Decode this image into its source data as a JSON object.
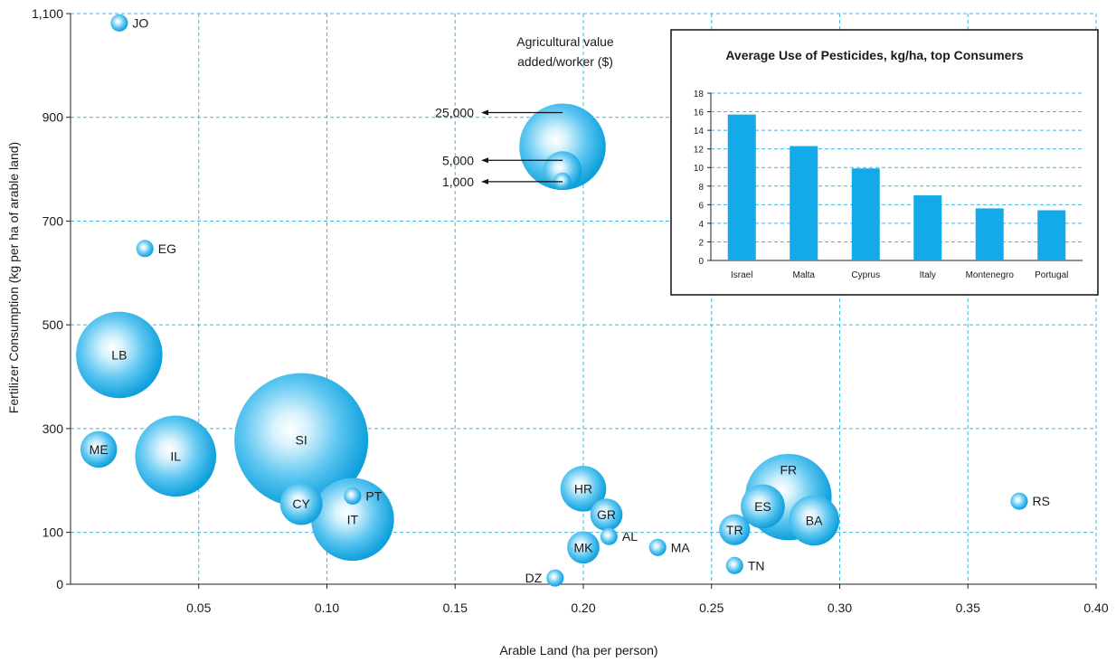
{
  "chart_data": [
    {
      "type": "scatter",
      "subtype": "bubble",
      "xlabel": "Arable Land (ha per person)",
      "ylabel": "Fertilizer Consumption (kg per ha of arable land)",
      "xlim": [
        0,
        0.4
      ],
      "ylim": [
        0,
        1100
      ],
      "x_ticks": [
        {
          "value": 0.05,
          "label": "0.05"
        },
        {
          "value": 0.1,
          "label": "0.10"
        },
        {
          "value": 0.15,
          "label": "0.15"
        },
        {
          "value": 0.2,
          "label": "0.20"
        },
        {
          "value": 0.25,
          "label": "0.25"
        },
        {
          "value": 0.3,
          "label": "0.30"
        },
        {
          "value": 0.35,
          "label": "0.35"
        },
        {
          "value": 0.4,
          "label": "0.40"
        }
      ],
      "y_ticks": [
        {
          "value": 0,
          "label": "0"
        },
        {
          "value": 100,
          "label": "100"
        },
        {
          "value": 300,
          "label": "300"
        },
        {
          "value": 500,
          "label": "500"
        },
        {
          "value": 700,
          "label": "700"
        },
        {
          "value": 900,
          "label": "900"
        },
        {
          "value": 1100,
          "label": "1,100"
        }
      ],
      "grid": true,
      "bubble_color": "#1aa6e0",
      "size_legend": {
        "title_lines": [
          "Agricultural value",
          "added/worker ($)"
        ],
        "entries": [
          {
            "label": "25,000",
            "value": 25000
          },
          {
            "label": "5,000",
            "value": 5000
          },
          {
            "label": "1,000",
            "value": 1000
          }
        ]
      },
      "points": [
        {
          "label": "JO",
          "x": 0.019,
          "y": 1082,
          "size": 1000,
          "label_pos": "right"
        },
        {
          "label": "EG",
          "x": 0.029,
          "y": 647,
          "size": 1000,
          "label_pos": "right"
        },
        {
          "label": "LB",
          "x": 0.019,
          "y": 442,
          "size": 25000,
          "label_pos": "center"
        },
        {
          "label": "ME",
          "x": 0.011,
          "y": 260,
          "size": 4500,
          "label_pos": "center"
        },
        {
          "label": "IL",
          "x": 0.041,
          "y": 247,
          "size": 22000,
          "label_pos": "center"
        },
        {
          "label": "SI",
          "x": 0.09,
          "y": 278,
          "size": 60000,
          "label_pos": "center"
        },
        {
          "label": "CY",
          "x": 0.09,
          "y": 155,
          "size": 6000,
          "label_pos": "center"
        },
        {
          "label": "IT",
          "x": 0.11,
          "y": 125,
          "size": 23000,
          "label_pos": "center"
        },
        {
          "label": "PT",
          "x": 0.11,
          "y": 170,
          "size": 1000,
          "label_pos": "right"
        },
        {
          "label": "HR",
          "x": 0.2,
          "y": 184,
          "size": 7000,
          "label_pos": "center"
        },
        {
          "label": "GR",
          "x": 0.209,
          "y": 134,
          "size": 3500,
          "label_pos": "center"
        },
        {
          "label": "AL",
          "x": 0.21,
          "y": 92,
          "size": 1000,
          "label_pos": "right"
        },
        {
          "label": "MK",
          "x": 0.2,
          "y": 71,
          "size": 3500,
          "label_pos": "center"
        },
        {
          "label": "DZ",
          "x": 0.189,
          "y": 12,
          "size": 1000,
          "label_pos": "left"
        },
        {
          "label": "MA",
          "x": 0.229,
          "y": 71,
          "size": 1000,
          "label_pos": "right"
        },
        {
          "label": "TR",
          "x": 0.259,
          "y": 105,
          "size": 3200,
          "label_pos": "center"
        },
        {
          "label": "TN",
          "x": 0.259,
          "y": 36,
          "size": 1000,
          "label_pos": "right"
        },
        {
          "label": "FR",
          "x": 0.28,
          "y": 168,
          "size": 25000,
          "label_pos": "center",
          "label_dy": -30
        },
        {
          "label": "ES",
          "x": 0.27,
          "y": 150,
          "size": 6500,
          "label_pos": "center"
        },
        {
          "label": "BA",
          "x": 0.29,
          "y": 123,
          "size": 8500,
          "label_pos": "center"
        },
        {
          "label": "RS",
          "x": 0.37,
          "y": 160,
          "size": 1000,
          "label_pos": "right"
        }
      ]
    },
    {
      "type": "bar",
      "title": "Average Use of Pesticides, kg/ha, top Consumers",
      "categories": [
        "Israel",
        "Malta",
        "Cyprus",
        "Italy",
        "Montenegro",
        "Portugal"
      ],
      "values": [
        15.7,
        12.3,
        9.9,
        7.0,
        5.6,
        5.4
      ],
      "ylim": [
        0,
        18
      ],
      "y_ticks": [
        "0",
        "2",
        "4",
        "6",
        "8",
        "10",
        "12",
        "14",
        "16",
        "18"
      ],
      "color": "#14a9e8",
      "grid": true
    }
  ]
}
